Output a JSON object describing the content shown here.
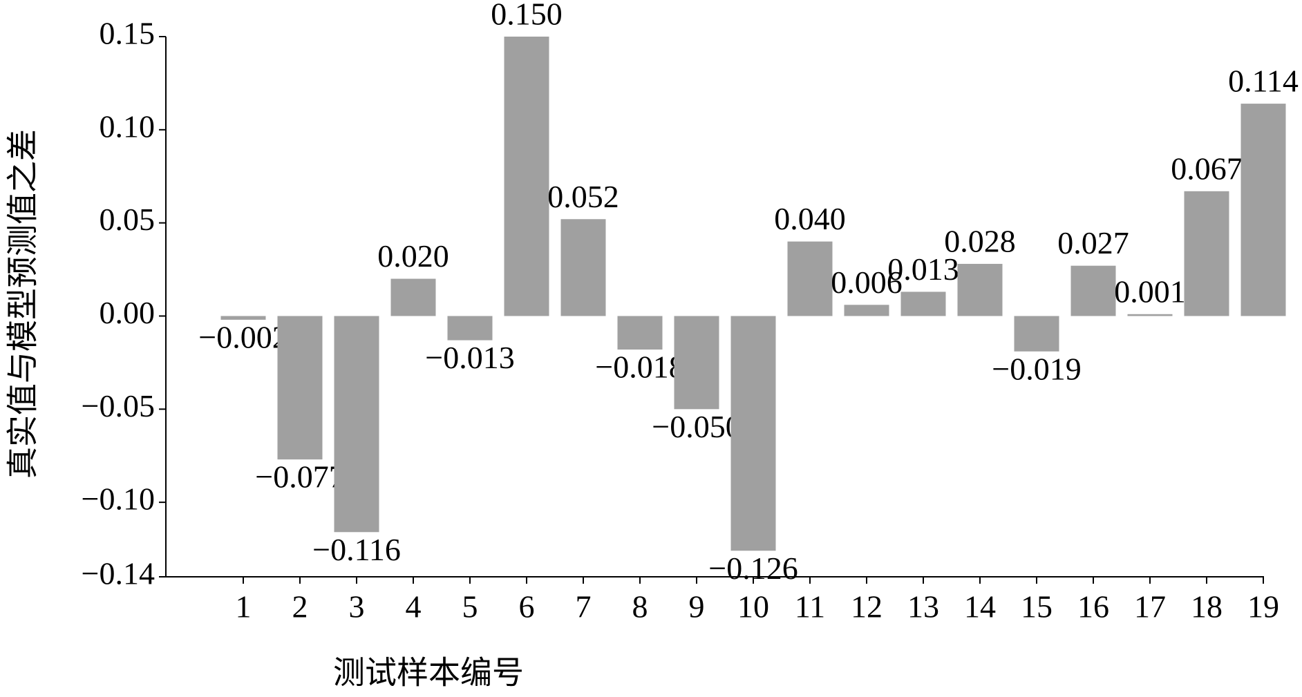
{
  "chart_data": {
    "type": "bar",
    "x_label": "测试样本编号",
    "y_label": "真实值与模型预测值之差",
    "categories": [
      "1",
      "2",
      "3",
      "4",
      "5",
      "6",
      "7",
      "8",
      "9",
      "10",
      "11",
      "12",
      "13",
      "14",
      "15",
      "16",
      "17",
      "18",
      "19"
    ],
    "values": [
      -0.002,
      -0.077,
      -0.116,
      0.02,
      -0.013,
      0.15,
      0.052,
      -0.018,
      -0.05,
      -0.126,
      0.04,
      0.006,
      0.013,
      0.028,
      -0.019,
      0.027,
      0.001,
      0.067,
      0.114
    ],
    "value_labels": [
      "−0.002",
      "−0.077",
      "−0.116",
      "0.020",
      "−0.013",
      "0.150",
      "0.052",
      "−0.018",
      "−0.050",
      "−0.126",
      "0.040",
      "0.006",
      "0.013",
      "0.028",
      "−0.019",
      "0.027",
      "0.001",
      "0.067",
      "0.114"
    ],
    "color": "#a0a0a0",
    "ylim": [
      -0.14,
      0.15
    ],
    "yticks": [
      0.15,
      {
        "value": 0.1,
        "label": "0.10"
      },
      {
        "value": 0.05,
        "label": "0.05"
      },
      {
        "value": 0,
        "label": "0.00"
      },
      {
        "value": -0.05,
        "label": "−0.05"
      },
      {
        "value": -0.1,
        "label": "−0.10"
      },
      {
        "value": -0.14,
        "label": "−0.14"
      }
    ],
    "grid": false
  }
}
